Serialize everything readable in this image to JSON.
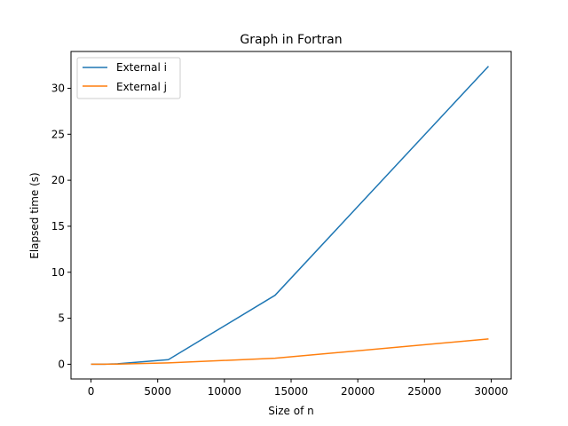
{
  "chart_data": {
    "type": "line",
    "title": "Graph in Fortran",
    "xlabel": "Size of n",
    "ylabel": "Elapsed time (s)",
    "xlim": [
      -1500,
      31500
    ],
    "ylim": [
      -1.6,
      34.0
    ],
    "xticks": [
      0,
      5000,
      10000,
      15000,
      20000,
      25000,
      30000
    ],
    "yticks": [
      0,
      5,
      10,
      15,
      20,
      25,
      30
    ],
    "grid": false,
    "legend": "top-left",
    "series": [
      {
        "name": "External i",
        "color": "#1f77b4",
        "x": [
          0,
          1000,
          2000,
          5800,
          13800,
          29800
        ],
        "y": [
          0.0,
          0.0,
          0.05,
          0.5,
          7.5,
          32.4
        ]
      },
      {
        "name": "External j",
        "color": "#ff7f0e",
        "x": [
          0,
          1000,
          2000,
          5800,
          13800,
          29800
        ],
        "y": [
          0.0,
          0.0,
          0.02,
          0.15,
          0.65,
          2.75
        ]
      }
    ]
  }
}
